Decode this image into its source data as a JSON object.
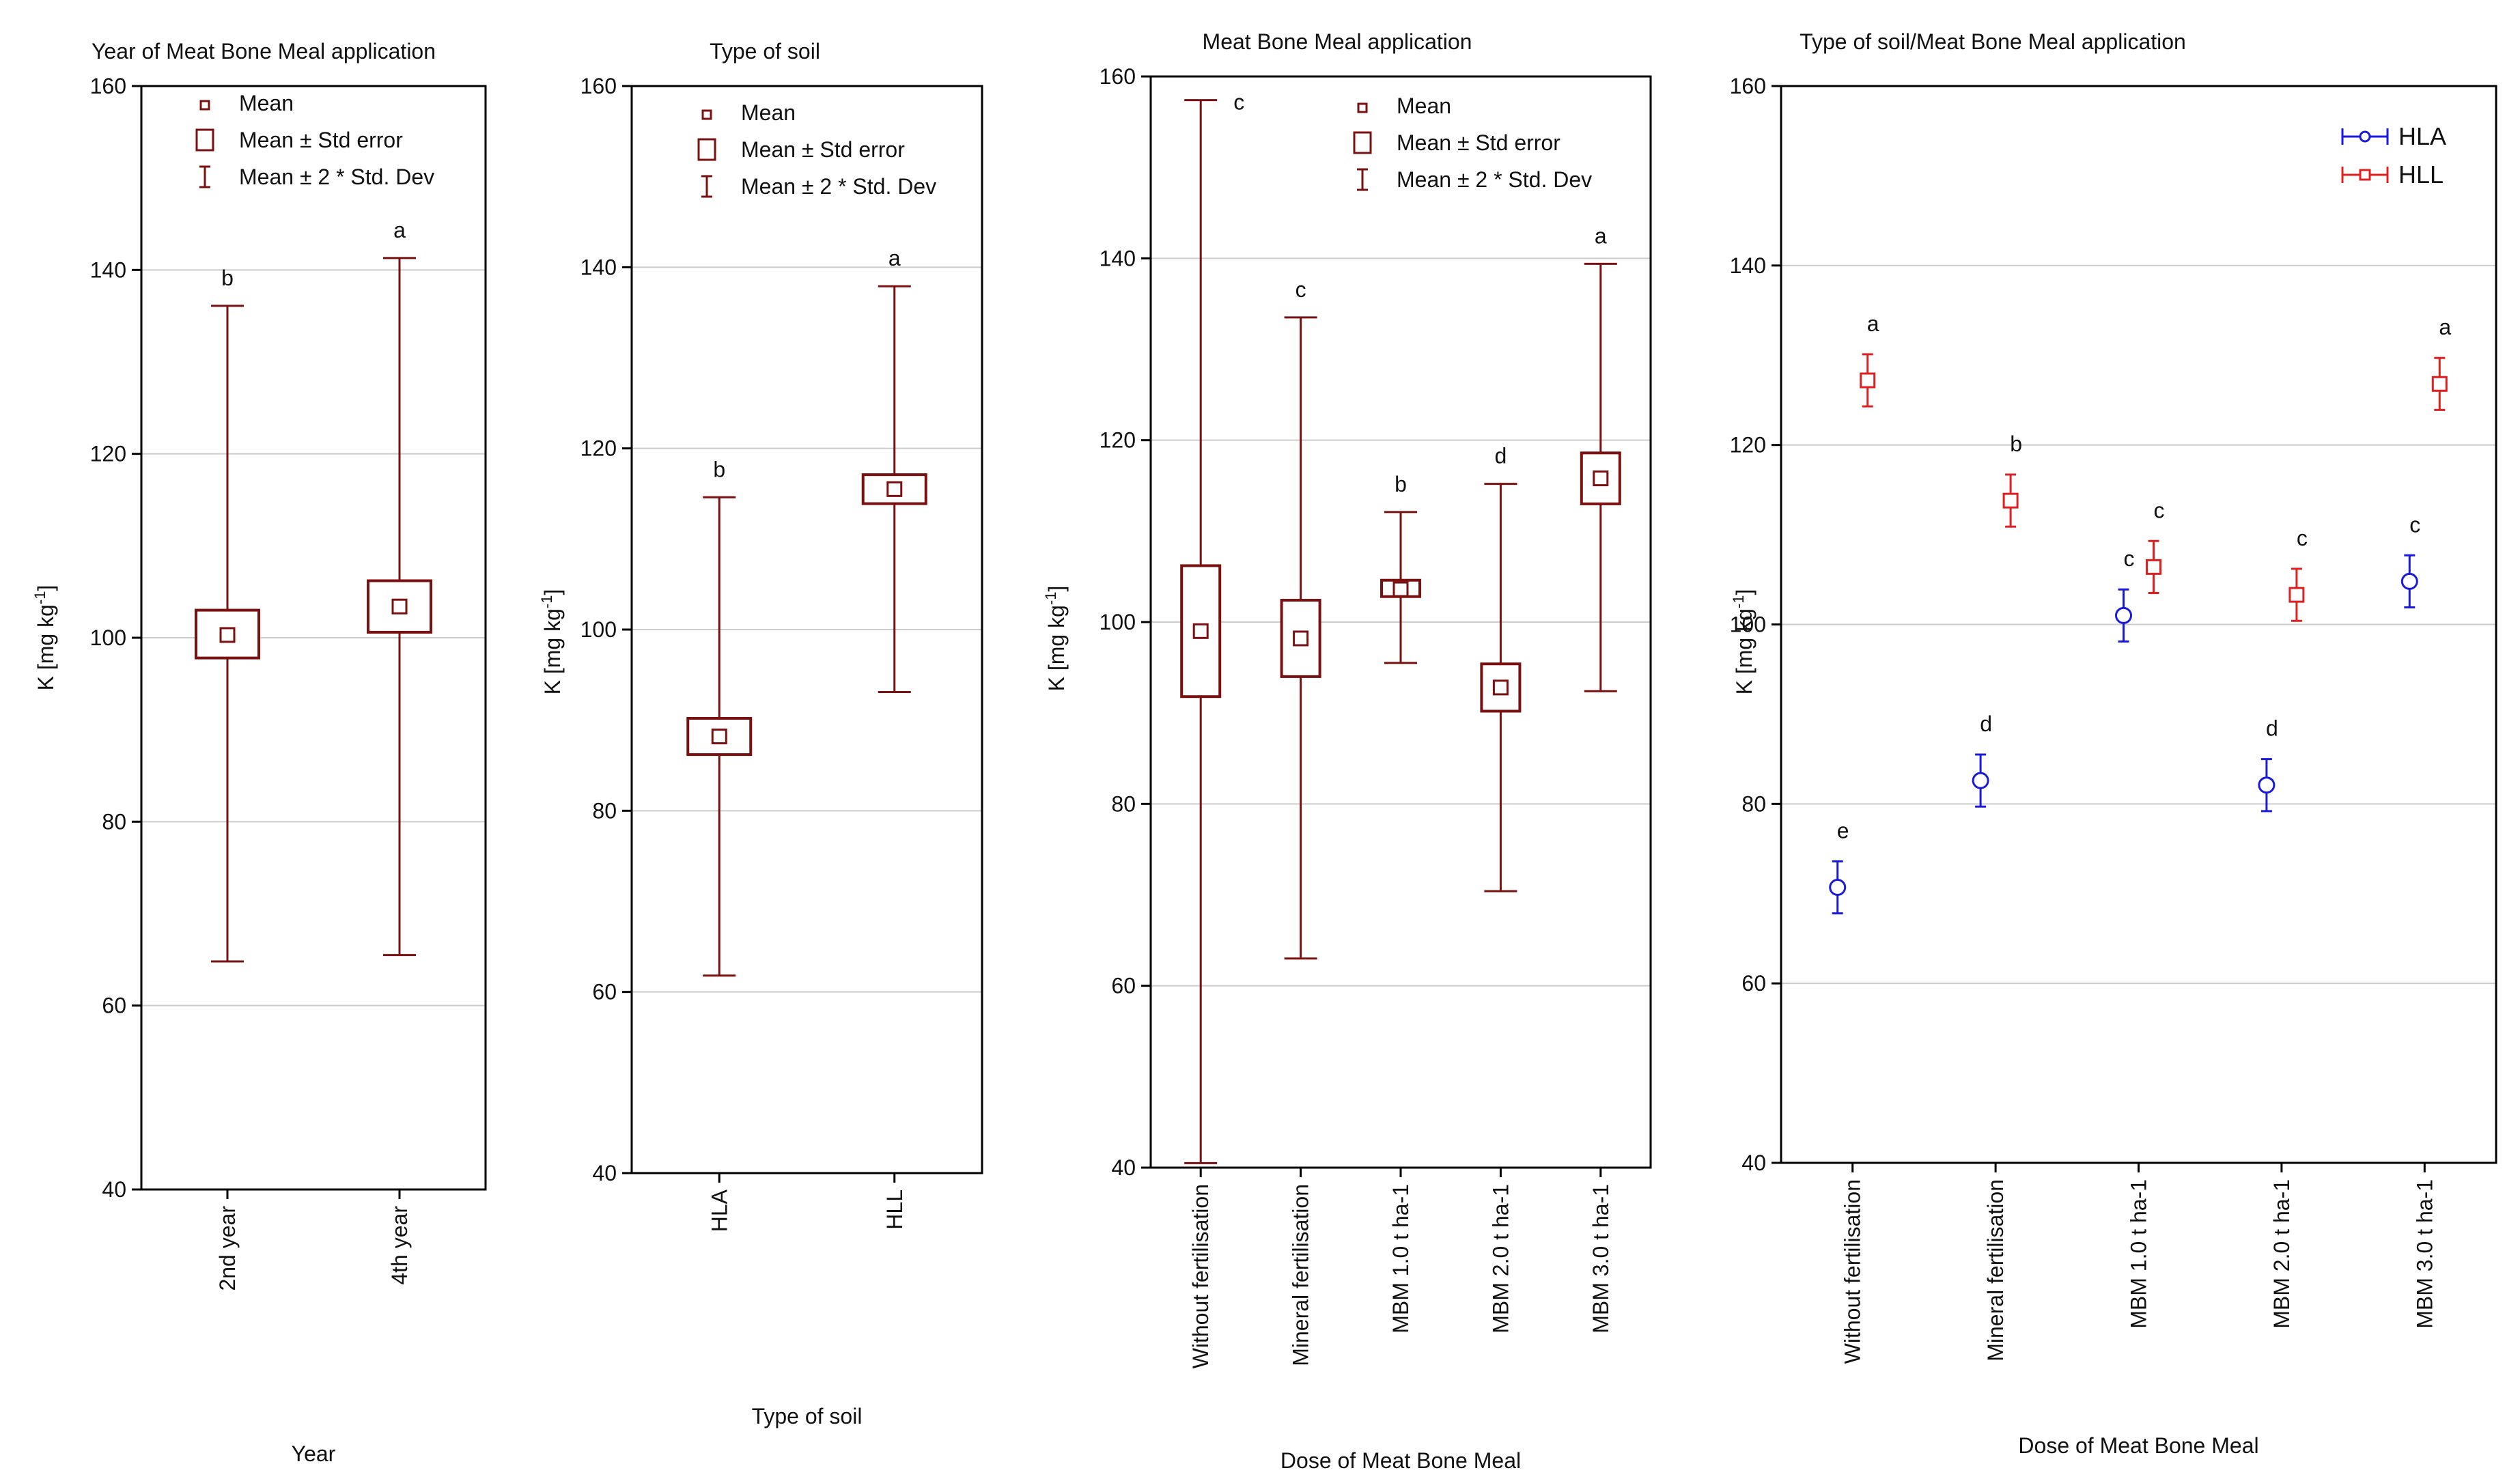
{
  "chart_data": [
    {
      "type": "box",
      "title": "Year of Meat Bone Meal application",
      "xlabel": "Year",
      "ylabel": "K [mg kg",
      "ylabel_sup": "-1",
      "ylim": [
        40,
        160
      ],
      "yticks": [
        40,
        60,
        80,
        100,
        120,
        140,
        160
      ],
      "legend": {
        "position": "top",
        "items": [
          "Mean",
          "Mean ± Std error",
          "Mean ± 2 * Std. Dev"
        ]
      },
      "categories": [
        "2nd year",
        "4th year"
      ],
      "mean": [
        100.3,
        103.4
      ],
      "se_low": [
        97.8,
        100.6
      ],
      "se_high": [
        103.0,
        106.2
      ],
      "sd2_low": [
        64.8,
        65.5
      ],
      "sd2_high": [
        136.1,
        141.3
      ],
      "letters": [
        "b",
        "a"
      ]
    },
    {
      "type": "box",
      "title": "Type of soil",
      "xlabel": "Type of soil",
      "ylabel": "K [mg kg",
      "ylabel_sup": "-1",
      "ylim": [
        40,
        160
      ],
      "yticks": [
        40,
        60,
        80,
        100,
        120,
        140,
        160
      ],
      "legend": {
        "position": "top",
        "items": [
          "Mean",
          "Mean ± Std error",
          "Mean ± 2 * Std. Dev"
        ]
      },
      "categories": [
        "HLA",
        "HLL"
      ],
      "mean": [
        88.2,
        115.5
      ],
      "se_low": [
        86.2,
        113.9
      ],
      "se_high": [
        90.2,
        117.1
      ],
      "sd2_low": [
        61.8,
        93.1
      ],
      "sd2_high": [
        114.6,
        137.9
      ],
      "letters": [
        "b",
        "a"
      ]
    },
    {
      "type": "box",
      "title": "Meat Bone Meal application",
      "xlabel": "Dose of Meat Bone Meal",
      "ylabel": "K [mg kg",
      "ylabel_sup": "-1",
      "ylim": [
        40,
        160
      ],
      "yticks": [
        40,
        60,
        80,
        100,
        120,
        140,
        160
      ],
      "legend": {
        "position": "top",
        "items": [
          "Mean",
          "Mean ± Std error",
          "Mean ± 2 * Std. Dev"
        ]
      },
      "categories": [
        "Without fertilisation",
        "Mineral fertilisation",
        "MBM 1.0 t ha-1",
        "MBM 2.0 t ha-1",
        "MBM 3.0 t ha-1"
      ],
      "mean": [
        99.0,
        98.2,
        103.6,
        92.8,
        115.8
      ],
      "se_low": [
        91.8,
        94.0,
        102.8,
        90.2,
        113.0
      ],
      "se_high": [
        106.2,
        102.4,
        104.6,
        95.4,
        118.6
      ],
      "sd2_low": [
        40.5,
        63.0,
        95.5,
        70.4,
        92.4
      ],
      "sd2_high": [
        157.4,
        133.5,
        112.1,
        115.2,
        139.4
      ],
      "letters": [
        "c",
        "c",
        "b",
        "d",
        "a"
      ]
    },
    {
      "type": "scatter",
      "title": "Type of soil/Meat Bone Meal application",
      "xlabel": "Dose of Meat Bone Meal",
      "ylabel": "K [mg kg",
      "ylabel_sup": "-1",
      "ylim": [
        40,
        160
      ],
      "yticks": [
        40,
        60,
        80,
        100,
        120,
        140,
        160
      ],
      "grid": true,
      "legend": {
        "position": "top-right"
      },
      "categories": [
        "Without fertilisation",
        "Mineral fertilisation",
        "MBM 1.0 t ha-1",
        "MBM 2.0 t ha-1",
        "MBM 3.0 t ha-1"
      ],
      "series": [
        {
          "name": "HLA",
          "color": "#1a1adc",
          "marker": "circle",
          "mean": [
            70.7,
            82.6,
            101.0,
            82.1,
            104.8
          ],
          "low": [
            67.8,
            79.7,
            98.1,
            79.2,
            101.9
          ],
          "high": [
            73.6,
            85.5,
            103.9,
            85.0,
            107.7
          ],
          "letters": [
            "e",
            "d",
            "c",
            "d",
            "c"
          ]
        },
        {
          "name": "HLL",
          "color": "#e02020",
          "marker": "square",
          "mean": [
            127.2,
            113.8,
            106.4,
            103.3,
            126.8
          ],
          "low": [
            124.3,
            110.9,
            103.5,
            100.4,
            123.9
          ],
          "high": [
            130.1,
            116.7,
            109.3,
            106.2,
            129.7
          ],
          "letters": [
            "a",
            "b",
            "c",
            "c",
            "a"
          ]
        }
      ]
    }
  ],
  "colors": {
    "box": "#7a1010",
    "grid": "#cccccc",
    "axis": "#000000"
  }
}
